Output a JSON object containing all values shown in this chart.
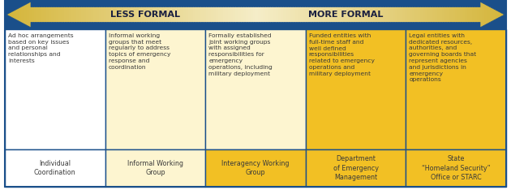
{
  "arrow_bg_color": "#1a4f8a",
  "arrow_fill_left": "#d4a820",
  "arrow_fill_center": "#f5eec0",
  "less_formal_label": "LESS FORMAL",
  "more_formal_label": "MORE FORMAL",
  "label_color": "#1a2040",
  "grid_color": "#1a4f8a",
  "col_bg_white": "#ffffff",
  "col_bg_cream": "#fdf5d0",
  "col_bg_yellow": "#f2c024",
  "descriptions": [
    "Ad hoc arrangements\nbased on key issues\nand personal\nrelationships and\ninterests",
    "Informal working\ngroups that meet\nregularly to address\ntopics of emergency\nresponse and\ncoordination",
    "Formally established\njoint working groups\nwith assigned\nresponsibilities for\nemergency\noperations, including\nmilitary deployment",
    "Funded entities with\nfull-time staff and\nwell defined\nresponsibilities\nrelated to emergency\noperations and\nmilitary deployment",
    "Legal entities with\ndedicated resources,\nauthorities, and\ngoverning boards that\nrepresent agencies\nand jurisdictions in\nemergency\noperations"
  ],
  "labels": [
    "Individual\nCoordination",
    "Informal Working\nGroup",
    "Interagency Working\nGroup",
    "Department\nof Emergency\nManagement",
    "State\n“Homeland Security”\nOffice or STARC"
  ],
  "col_colors_desc": [
    "#ffffff",
    "#fdf5d0",
    "#fdf5d0",
    "#f2c024",
    "#f2c024"
  ],
  "col_colors_label": [
    "#ffffff",
    "#fdf5d0",
    "#f2c024",
    "#f2c024",
    "#f2c024"
  ],
  "text_color": "#3a3a3a",
  "figsize": [
    6.3,
    2.34
  ],
  "dpi": 100
}
